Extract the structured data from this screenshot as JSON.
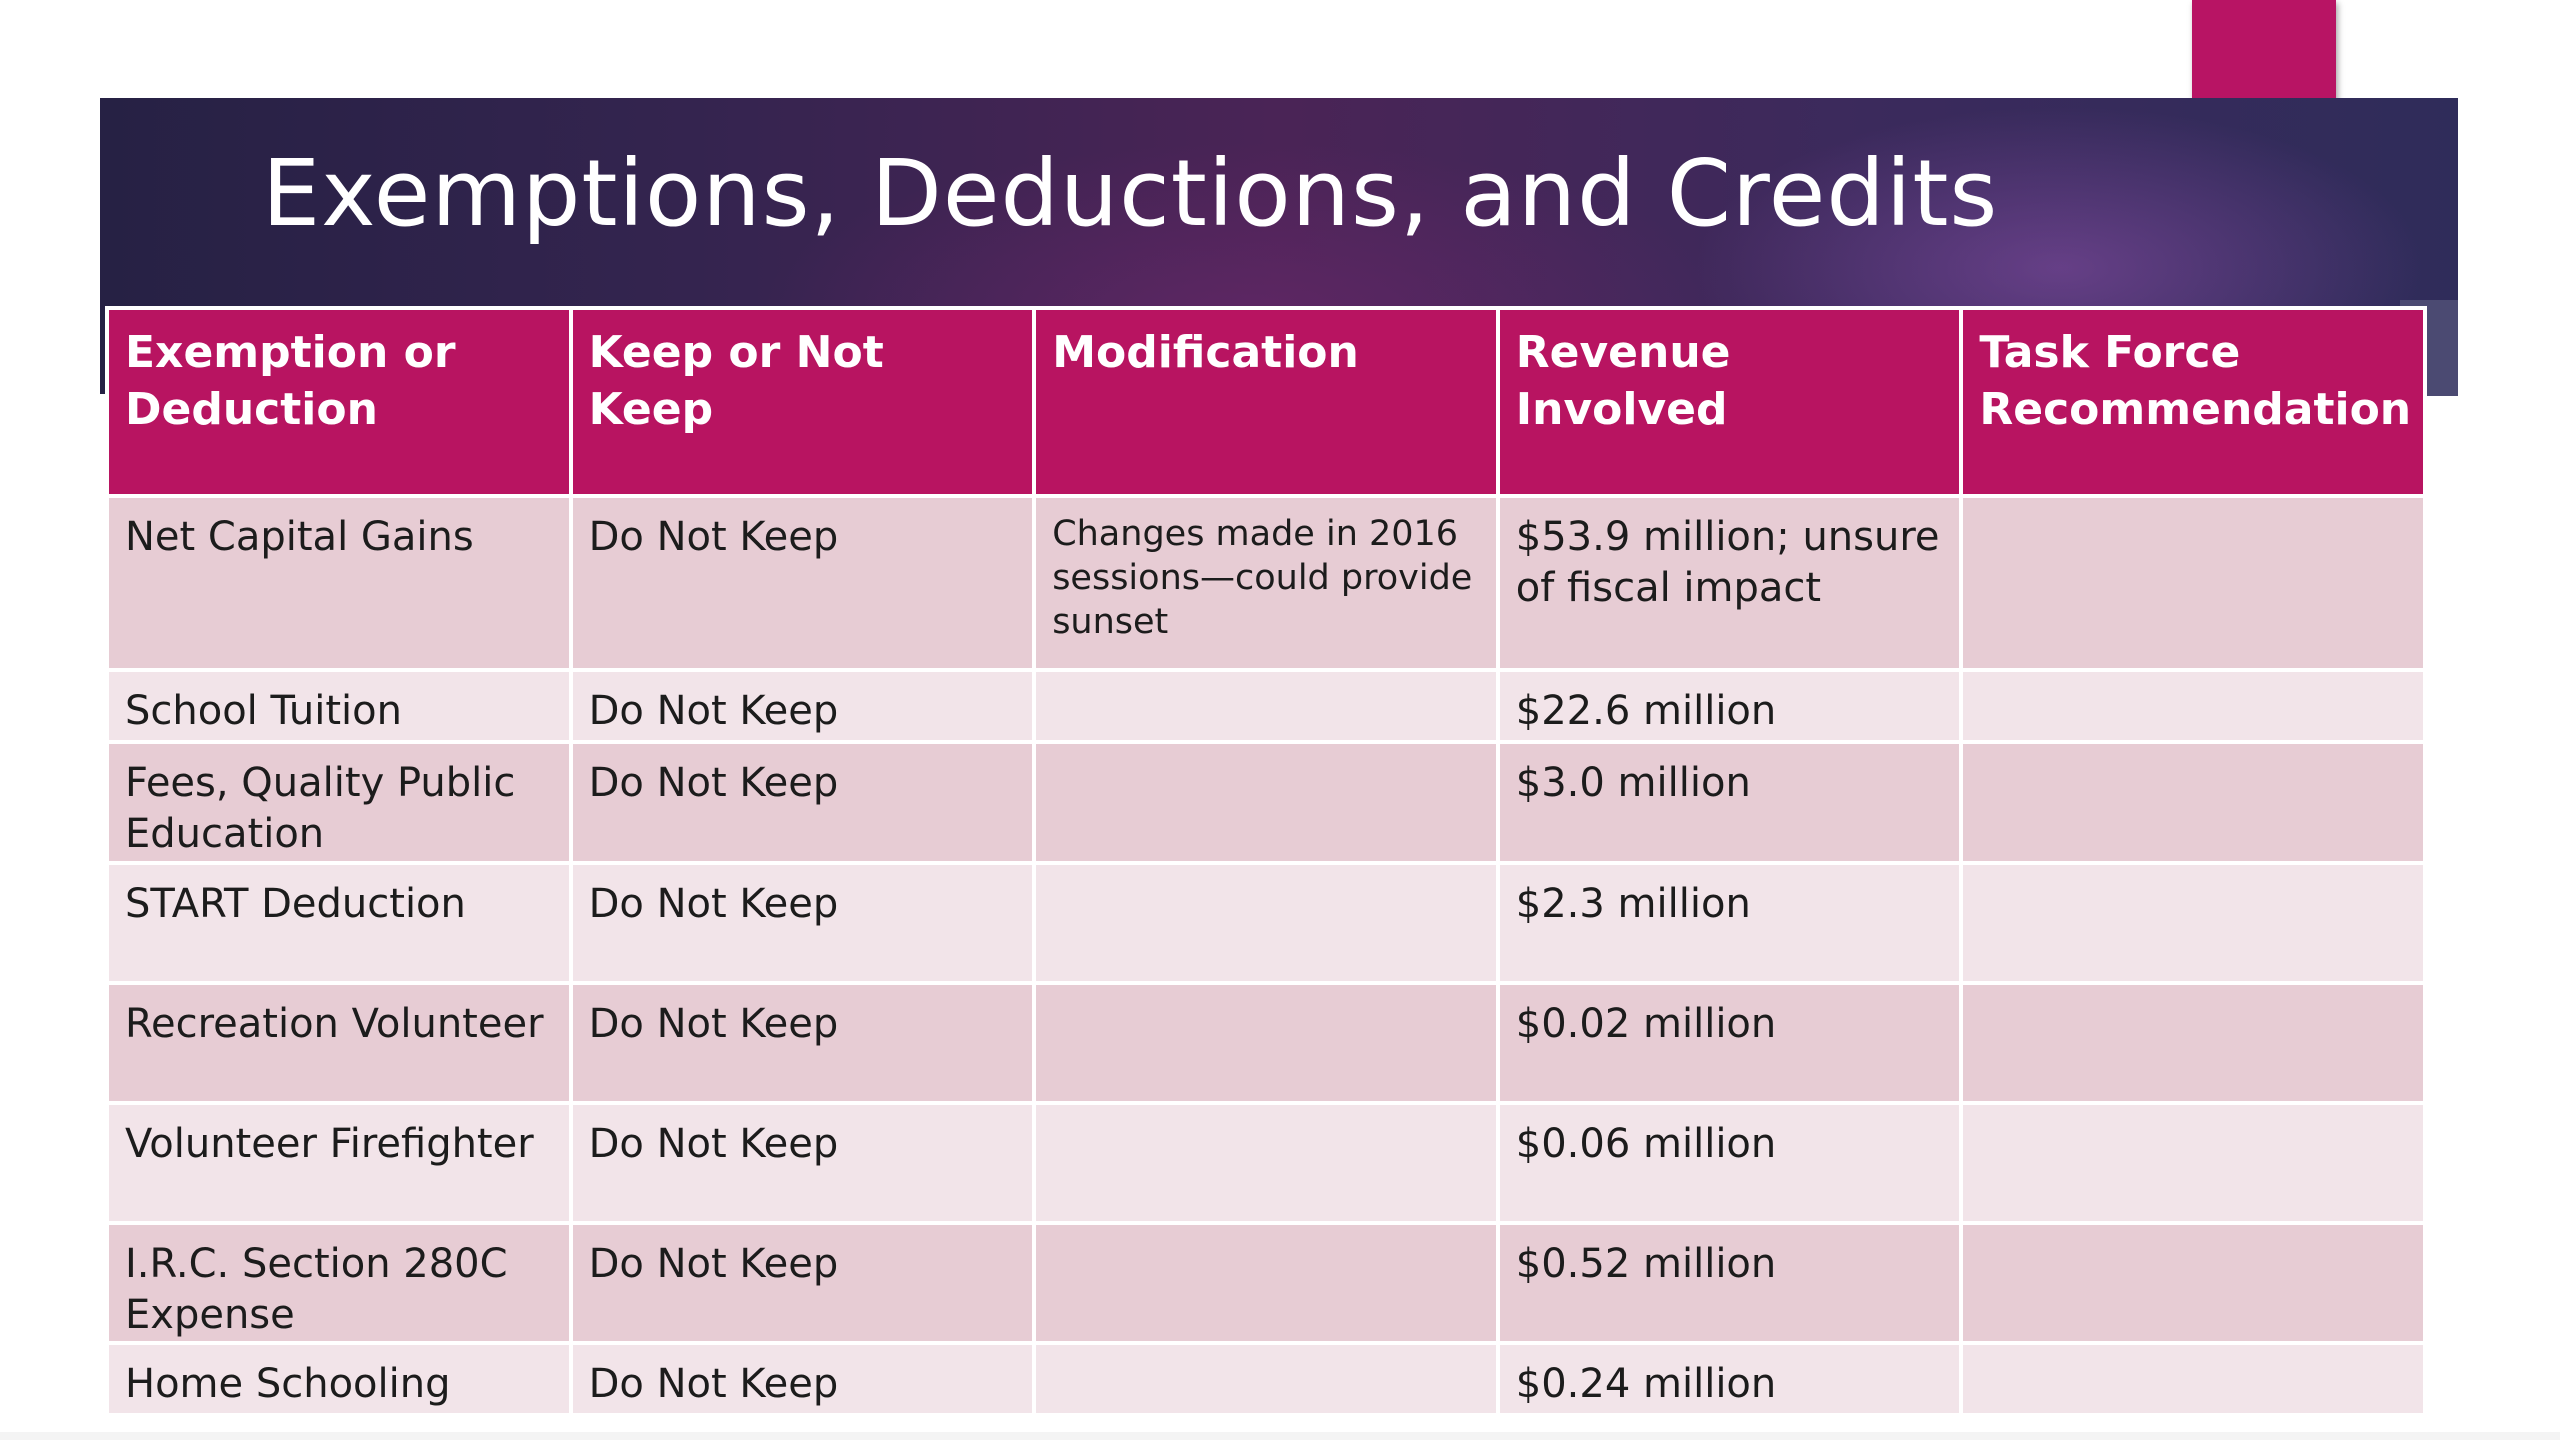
{
  "slide": {
    "title": "Exemptions, Deductions, and Credits",
    "colors": {
      "accent": "#b81464",
      "header_fill": "#b81461",
      "row_odd": "#e7ccd4",
      "row_even": "#f2e4e9",
      "band_dark": "#2f2a55"
    }
  },
  "table": {
    "headers": [
      "Exemption or Deduction",
      "Keep or Not Keep",
      "Modification",
      "Revenue Involved",
      "Task Force Recommendation"
    ],
    "rows": [
      {
        "item": "Net Capital Gains",
        "keep": "Do Not Keep",
        "modification": "Changes made in 2016 sessions—could provide sunset",
        "revenue": "$53.9 million; unsure of fiscal impact",
        "recommendation": ""
      },
      {
        "item": "School Tuition",
        "keep": "Do Not Keep",
        "modification": "",
        "revenue": "$22.6 million",
        "recommendation": ""
      },
      {
        "item": "Fees, Quality Public Education",
        "keep": "Do Not Keep",
        "modification": "",
        "revenue": "$3.0 million",
        "recommendation": ""
      },
      {
        "item": "START Deduction",
        "keep": "Do Not Keep",
        "modification": "",
        "revenue": "$2.3 million",
        "recommendation": ""
      },
      {
        "item": "Recreation Volunteer",
        "keep": "Do Not Keep",
        "modification": "",
        "revenue": "$0.02 million",
        "recommendation": ""
      },
      {
        "item": "Volunteer Firefighter",
        "keep": "Do Not Keep",
        "modification": "",
        "revenue": "$0.06 million",
        "recommendation": ""
      },
      {
        "item": "I.R.C. Section 280C Expense",
        "keep": "Do Not Keep",
        "modification": "",
        "revenue": "$0.52 million",
        "recommendation": ""
      },
      {
        "item": "Home Schooling",
        "keep": "Do Not Keep",
        "modification": "",
        "revenue": "$0.24 million",
        "recommendation": ""
      }
    ]
  }
}
